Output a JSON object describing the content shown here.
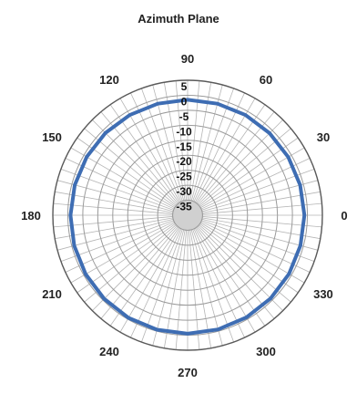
{
  "chart_data": {
    "type": "polar-line",
    "title": "Azimuth Plane",
    "angle_labels": [
      "0",
      "30",
      "60",
      "90",
      "120",
      "150",
      "180",
      "210",
      "240",
      "270",
      "300",
      "330"
    ],
    "angle_values_deg": [
      0,
      30,
      60,
      90,
      120,
      150,
      180,
      210,
      240,
      270,
      300,
      330
    ],
    "radial_range": [
      -40,
      5
    ],
    "radial_ticks": [
      5,
      0,
      -5,
      -10,
      -15,
      -20,
      -25,
      -30,
      -35
    ],
    "radial_tick_labels": [
      "5",
      "0",
      "-5",
      "-10",
      "-15",
      "-20",
      "-25",
      "-30",
      "-35"
    ],
    "angular_grid_step_deg": 5,
    "grid": true,
    "series": [
      {
        "color": "#3e6db3",
        "angles_deg": [
          0,
          15,
          30,
          45,
          60,
          75,
          90,
          105,
          120,
          135,
          150,
          165,
          180,
          195,
          210,
          225,
          240,
          255,
          270,
          285,
          300,
          315,
          330,
          345,
          360
        ],
        "values": [
          -1.0,
          -1.1,
          -1.2,
          -1.3,
          -1.4,
          -1.5,
          -1.5,
          -1.5,
          -1.4,
          -1.2,
          -1.1,
          -1.0,
          -0.9,
          -0.8,
          -0.7,
          -0.6,
          -0.5,
          -0.5,
          -0.5,
          -0.6,
          -0.7,
          -0.8,
          -0.9,
          -1.0,
          -1.0
        ]
      }
    ]
  }
}
